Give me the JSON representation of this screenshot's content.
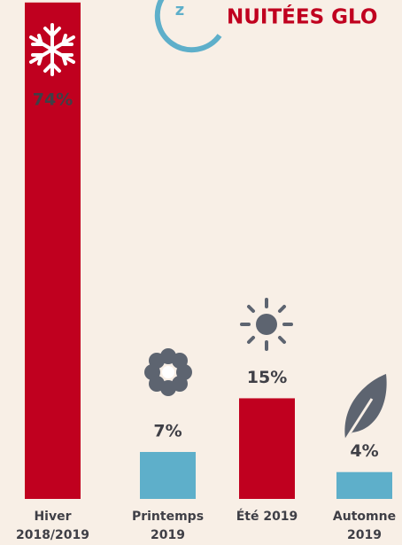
{
  "chart_data": {
    "type": "bar",
    "title": "NUITÉES GLO",
    "categories": [
      "Hiver 2018/2019",
      "Printemps 2019",
      "Été 2019",
      "Automne 2019"
    ],
    "values": [
      74,
      7,
      15,
      4
    ],
    "value_labels": [
      "74%",
      "7%",
      "15%",
      "4%"
    ],
    "colors": [
      "#c0001f",
      "#5eafca",
      "#c0001f",
      "#5eafca"
    ]
  }
}
